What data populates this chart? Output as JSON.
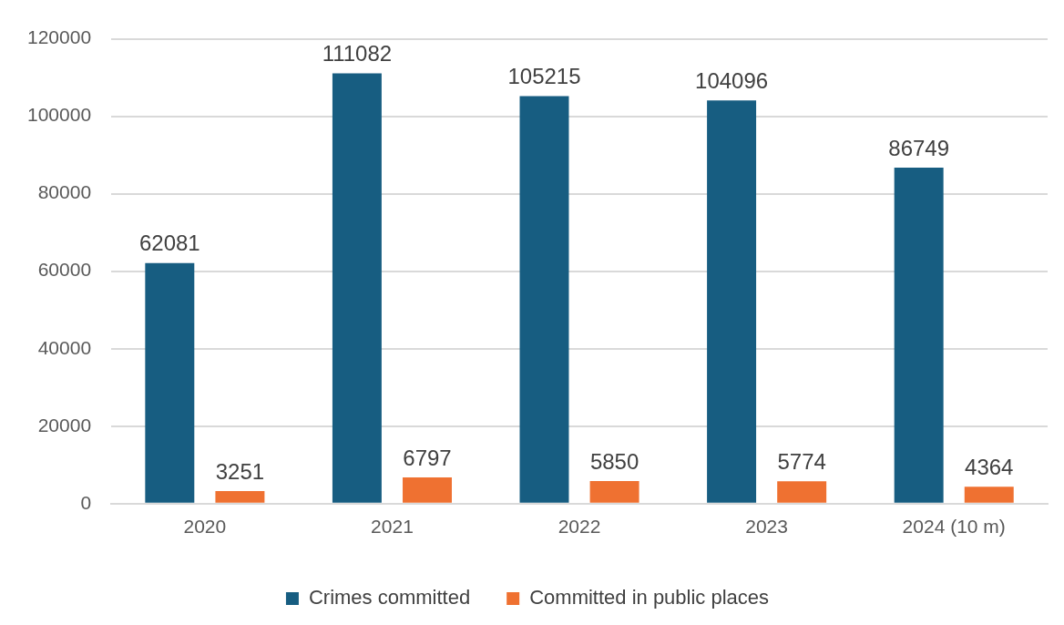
{
  "chart_data": {
    "type": "bar",
    "categories": [
      "2020",
      "2021",
      "2022",
      "2023",
      "2024 (10 m)"
    ],
    "series": [
      {
        "name": "Crimes committed",
        "color": "#175d81",
        "values": [
          62081,
          111082,
          105215,
          104096,
          86749
        ]
      },
      {
        "name": "Committed in public places",
        "color": "#ef7131",
        "values": [
          3251,
          6797,
          5850,
          5774,
          4364
        ]
      }
    ],
    "ylim": [
      0,
      120000
    ],
    "yticks": [
      0,
      20000,
      40000,
      60000,
      80000,
      100000,
      120000
    ],
    "grid": "y",
    "legend": "bottom",
    "data_labels": true
  }
}
